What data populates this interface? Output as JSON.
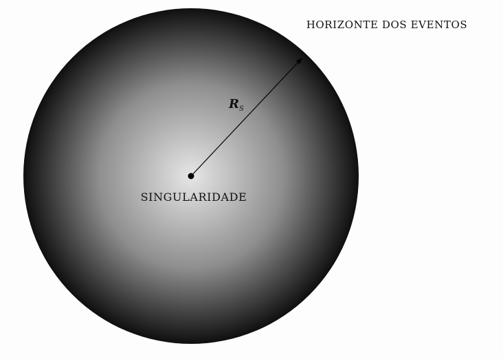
{
  "labels": {
    "event_horizon": "HORIZONTE DOS EVENTOS",
    "singularity": "SINGULARIDADE",
    "radius_symbol": "R",
    "radius_subscript": "S"
  },
  "colors": {
    "background": "#fdfdfd",
    "sphere_center": "#e6e6e6",
    "sphere_mid": "#8e8e8e",
    "sphere_edge": "#0f0f0f",
    "lines": "#000000"
  }
}
